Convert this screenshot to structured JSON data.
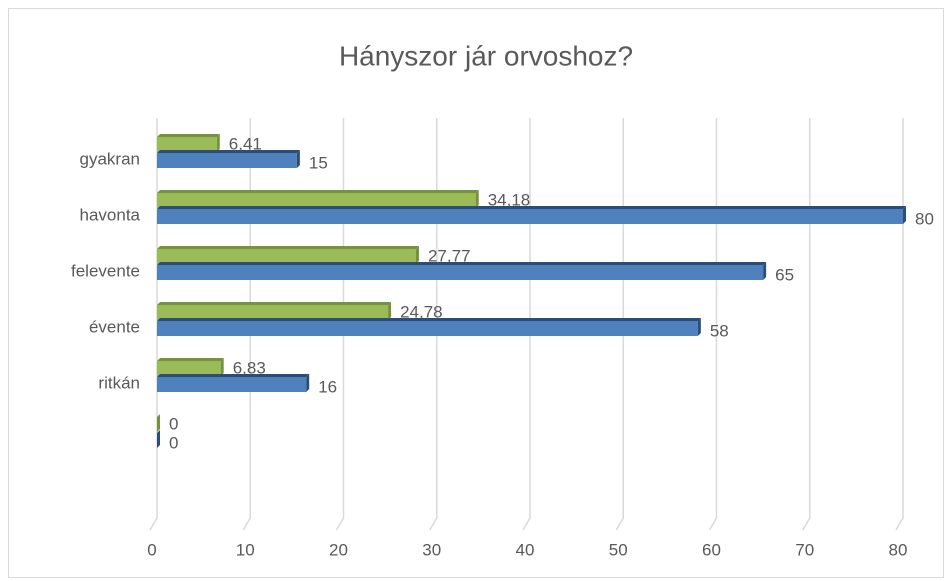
{
  "chart_data": {
    "type": "bar",
    "orientation": "horizontal",
    "title": "Hányszor jár orvoshoz?",
    "categories": [
      "gyakran",
      "havonta",
      "felevente",
      "évente",
      "ritkán",
      null
    ],
    "series": [
      {
        "color": "#9bbb59",
        "values": [
          6.41,
          34.18,
          27.77,
          24.78,
          6.83,
          0
        ],
        "value_labels": [
          "6,41",
          "34,18",
          "27,77",
          "24,78",
          "6,83",
          "0"
        ]
      },
      {
        "color": "#4f81bd",
        "values": [
          15,
          80,
          65,
          58,
          16,
          0
        ]
      }
    ],
    "xlim": [
      0,
      80
    ],
    "xticks": [
      0,
      10,
      20,
      30,
      40,
      50,
      60,
      70,
      80
    ],
    "grid": true
  }
}
